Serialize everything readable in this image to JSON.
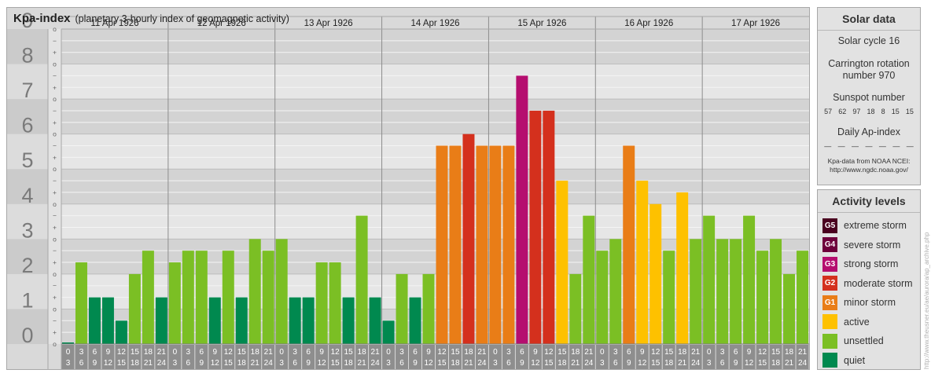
{
  "header": {
    "title": "Kpa-index",
    "subtitle": "(planetary 3-hourly index of geomagnetic activity)"
  },
  "colors": {
    "quiet": "#00894f",
    "unsettled": "#7bbf24",
    "active": "#fec100",
    "minor_storm": "#e97d17",
    "moderate_storm": "#d4301d",
    "strong_storm": "#b50e6f",
    "severe_storm": "#6e003b",
    "extreme_storm": "#4a001f"
  },
  "chart_data": {
    "type": "bar",
    "title": "Kpa-index",
    "ylim": [
      0,
      9
    ],
    "y_ticks": [
      "0",
      "1",
      "2",
      "3",
      "4",
      "5",
      "6",
      "7",
      "8",
      "9"
    ],
    "sub_ticks": [
      "o",
      "+",
      "−"
    ],
    "days": [
      "11 Apr 1926",
      "12 Apr 1926",
      "13 Apr 1926",
      "14 Apr 1926",
      "15 Apr 1926",
      "16 Apr 1926",
      "17 Apr 1926"
    ],
    "interval_labels": [
      [
        "0",
        "3"
      ],
      [
        "3",
        "6"
      ],
      [
        "6",
        "9"
      ],
      [
        "9",
        "12"
      ],
      [
        "12",
        "15"
      ],
      [
        "15",
        "18"
      ],
      [
        "18",
        "21"
      ],
      [
        "21",
        "24"
      ]
    ],
    "values": [
      [
        0.0,
        2.333,
        1.333,
        1.333,
        0.667,
        2.0,
        2.667,
        1.333
      ],
      [
        2.333,
        2.667,
        2.667,
        1.333,
        2.667,
        1.333,
        3.0,
        2.667
      ],
      [
        3.0,
        1.333,
        1.333,
        2.333,
        2.333,
        1.333,
        3.667,
        1.333
      ],
      [
        0.667,
        2.0,
        1.333,
        2.0,
        5.667,
        5.667,
        6.0,
        5.667
      ],
      [
        5.667,
        5.667,
        7.667,
        6.667,
        6.667,
        4.667,
        2.0,
        3.667
      ],
      [
        2.667,
        3.0,
        5.667,
        4.667,
        4.0,
        2.667,
        4.333,
        3.0
      ],
      [
        3.667,
        3.0,
        3.0,
        3.667,
        2.667,
        3.0,
        2.0,
        2.667
      ]
    ]
  },
  "solar": {
    "header": "Solar data",
    "cycle": "Solar cycle 16",
    "carrington_1": "Carrington rotation",
    "carrington_2": "number 970",
    "sunspot_label": "Sunspot number",
    "sunspot_values": [
      "57",
      "62",
      "97",
      "18",
      "8",
      "15",
      "15"
    ],
    "ap_label": "Daily Ap-index",
    "ap_values": [
      "—",
      "—",
      "—",
      "—",
      "—",
      "—",
      "—"
    ],
    "note_1": "Kpa-data from NOAA NCEI:",
    "note_2": "http://www.ngdc.noaa.gov/"
  },
  "levels": {
    "header": "Activity levels",
    "items": [
      {
        "badge": "G5",
        "label": "extreme storm",
        "color": "#4a001f"
      },
      {
        "badge": "G4",
        "label": "severe storm",
        "color": "#6e003b"
      },
      {
        "badge": "G3",
        "label": "strong storm",
        "color": "#b50e6f"
      },
      {
        "badge": "G2",
        "label": "moderate storm",
        "color": "#d4301d"
      },
      {
        "badge": "G1",
        "label": "minor storm",
        "color": "#e97d17"
      },
      {
        "badge": "",
        "label": "active",
        "color": "#fec100"
      },
      {
        "badge": "",
        "label": "unsettled",
        "color": "#7bbf24"
      },
      {
        "badge": "",
        "label": "quiet",
        "color": "#00894f"
      }
    ]
  },
  "watermark": "http://www.theusner.eu/ae/aurora/ap_archive.php"
}
